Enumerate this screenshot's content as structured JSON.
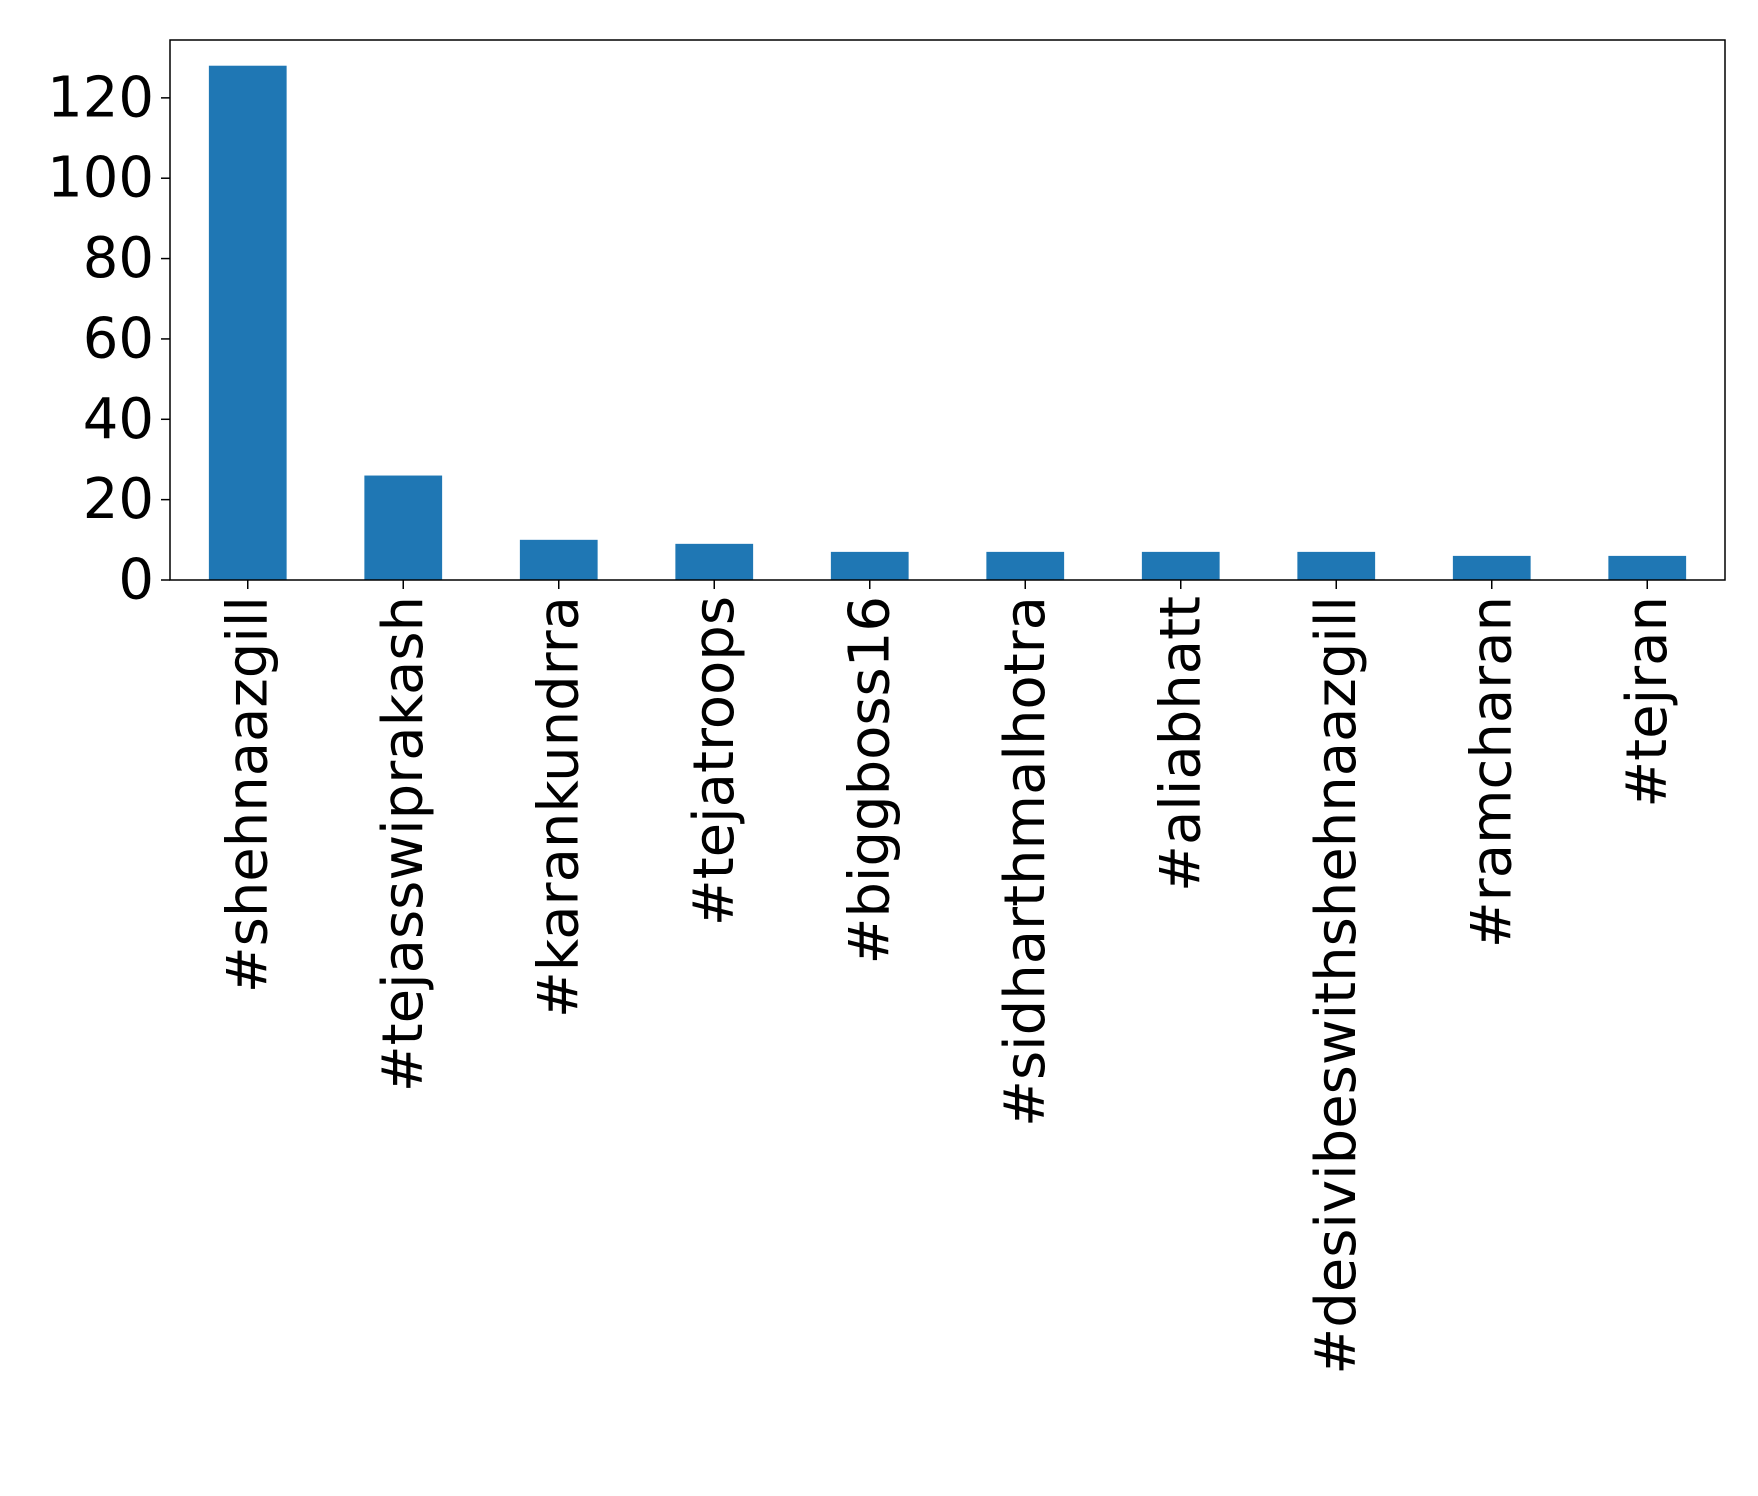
{
  "chart_data": {
    "type": "bar",
    "title": "",
    "xlabel": "",
    "ylabel": "",
    "categories": [
      "#shehnaazgill",
      "#tejasswiprakash",
      "#karankundrra",
      "#tejatroops",
      "#biggboss16",
      "#sidharthmalhotra",
      "#aliabhatt",
      "#desivibeswithshehnaazgill",
      "#ramcharan",
      "#tejran"
    ],
    "values": [
      128,
      26,
      10,
      9,
      7,
      7,
      7,
      7,
      6,
      6
    ],
    "ylim": [
      0,
      134.4
    ],
    "yticks": [
      0,
      20,
      40,
      60,
      80,
      100,
      120
    ],
    "grid": false,
    "legend": "none",
    "bar_color": "#1f77b4"
  }
}
